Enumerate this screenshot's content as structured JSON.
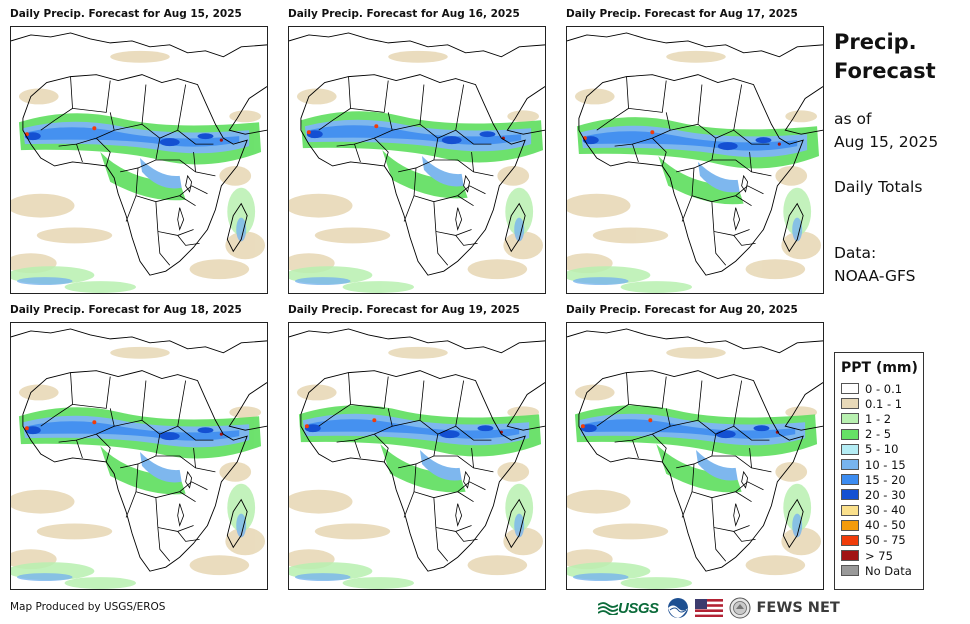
{
  "panels": [
    {
      "title": "Daily Precip. Forecast for Aug 15, 2025"
    },
    {
      "title": "Daily Precip. Forecast for Aug 16, 2025"
    },
    {
      "title": "Daily Precip. Forecast for Aug 17, 2025"
    },
    {
      "title": "Daily Precip. Forecast for Aug 18, 2025"
    },
    {
      "title": "Daily Precip. Forecast for Aug 19, 2025"
    },
    {
      "title": "Daily Precip. Forecast for Aug 20, 2025"
    }
  ],
  "side": {
    "title_line1": "Precip.",
    "title_line2": "Forecast",
    "asof_line1": "as of",
    "asof_line2": "Aug 15, 2025",
    "totals": "Daily Totals",
    "source_line1": "Data:",
    "source_line2": "NOAA-GFS"
  },
  "legend": {
    "title": "PPT (mm)",
    "items": [
      {
        "label": "0 - 0.1",
        "color": "#ffffff"
      },
      {
        "label": "0.1 - 1",
        "color": "#e8d9b8"
      },
      {
        "label": "1 - 2",
        "color": "#b8f0b0"
      },
      {
        "label": "2 - 5",
        "color": "#66e066"
      },
      {
        "label": "5 - 10",
        "color": "#b4ecf4"
      },
      {
        "label": "10 - 15",
        "color": "#78b4ee"
      },
      {
        "label": "15 - 20",
        "color": "#3c8cf0"
      },
      {
        "label": "20 - 30",
        "color": "#1450d2"
      },
      {
        "label": "30 - 40",
        "color": "#fae08c"
      },
      {
        "label": "40 - 50",
        "color": "#f59b0a"
      },
      {
        "label": "50 - 75",
        "color": "#f03c0a"
      },
      {
        "label": "> 75",
        "color": "#a01414"
      },
      {
        "label": "No Data",
        "color": "#999999"
      }
    ]
  },
  "footer": {
    "credit": "Map Produced by USGS/EROS",
    "usgs": "USGS",
    "usgs_tagline": "science for a changing world",
    "fews": "FEWS NET"
  }
}
